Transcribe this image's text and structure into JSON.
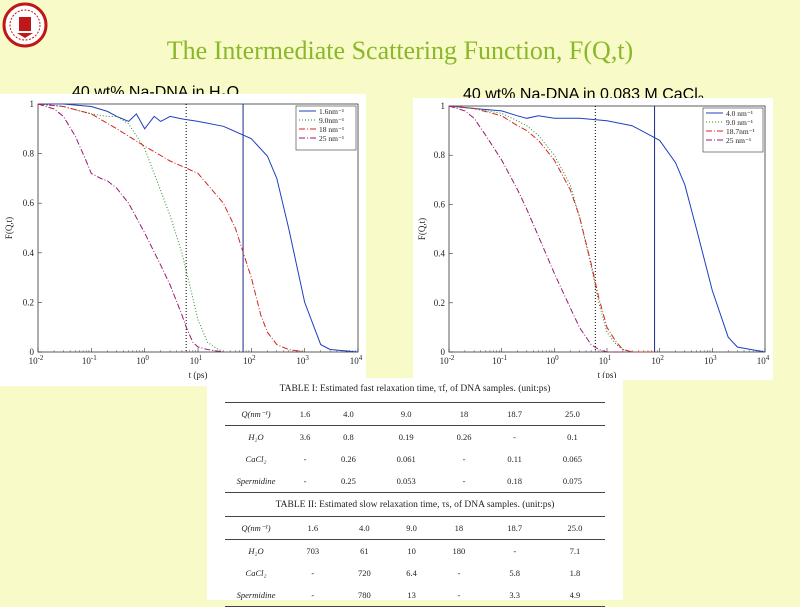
{
  "slide_title": "The Intermediate Scattering Function, F(Q,t)",
  "logo_icon": "university-seal-icon",
  "colors": {
    "title": "#8ab82a",
    "background": "#f8fac8"
  },
  "chart_data": [
    {
      "type": "line",
      "title": "40 wt% Na-DNA in H",
      "title_sub": "2",
      "title_tail": "O",
      "xlabel": "t (ps)",
      "ylabel": "F(Q,t)",
      "xscale": "log",
      "xlim": [
        0.01,
        10000
      ],
      "ylim": [
        0,
        1
      ],
      "x_ticks": [
        "-2",
        "-1",
        "0",
        "1",
        "2",
        "3",
        "4"
      ],
      "y_ticks": [
        "0",
        "0.2",
        "0.4",
        "0.6",
        "0.8",
        "1"
      ],
      "legend_position": "top-right",
      "vlines": [
        {
          "x": 6,
          "style": "dotted"
        },
        {
          "x": 70,
          "style": "solid"
        }
      ],
      "series": [
        {
          "name": "1.6nm⁻¹",
          "color": "#1f3fbf",
          "dash": "solid",
          "x": [
            0.01,
            0.03,
            0.1,
            0.2,
            0.3,
            0.5,
            0.7,
            1,
            1.5,
            2,
            3,
            5,
            10,
            30,
            100,
            200,
            300,
            500,
            1000,
            2000,
            3000,
            10000
          ],
          "y": [
            1,
            1,
            0.99,
            0.97,
            0.95,
            0.93,
            0.96,
            0.9,
            0.95,
            0.93,
            0.95,
            0.94,
            0.93,
            0.91,
            0.86,
            0.79,
            0.7,
            0.5,
            0.2,
            0.03,
            0.01,
            0
          ]
        },
        {
          "name": "9.0nm⁻¹",
          "color": "#2a8a2a",
          "dash": "1,2",
          "x": [
            0.01,
            0.03,
            0.1,
            0.2,
            0.3,
            0.5,
            1,
            2,
            3,
            5,
            7,
            10,
            15,
            20,
            30,
            100
          ],
          "y": [
            1,
            0.99,
            0.96,
            0.95,
            0.95,
            0.92,
            0.82,
            0.65,
            0.55,
            0.4,
            0.27,
            0.13,
            0.04,
            0.02,
            0,
            0
          ]
        },
        {
          "name": "18 nm⁻¹",
          "color": "#d42424",
          "dash": "6,2,1,2",
          "x": [
            0.01,
            0.03,
            0.1,
            0.3,
            1,
            3,
            10,
            30,
            50,
            100,
            150,
            200,
            300,
            500,
            1000
          ],
          "y": [
            1,
            0.99,
            0.96,
            0.9,
            0.83,
            0.77,
            0.72,
            0.6,
            0.5,
            0.3,
            0.15,
            0.08,
            0.03,
            0.01,
            0
          ]
        },
        {
          "name": "25 nm⁻¹",
          "color": "#9a1a70",
          "dash": "6,2,1,2",
          "x": [
            0.01,
            0.02,
            0.03,
            0.05,
            0.08,
            0.1,
            0.15,
            0.2,
            0.3,
            0.5,
            1,
            2,
            3,
            5,
            6,
            8,
            10,
            15,
            30
          ],
          "y": [
            1,
            0.98,
            0.95,
            0.87,
            0.77,
            0.72,
            0.7,
            0.69,
            0.66,
            0.6,
            0.48,
            0.35,
            0.27,
            0.15,
            0.1,
            0.04,
            0.02,
            0.01,
            0
          ]
        }
      ]
    },
    {
      "type": "line",
      "title": "40 wt% Na-DNA in 0.083 M CaCl",
      "title_sub": "2",
      "title_tail": "",
      "xlabel": "t (ps)",
      "ylabel": "F(Q,t)",
      "xscale": "log",
      "xlim": [
        0.01,
        10000
      ],
      "ylim": [
        0,
        1
      ],
      "x_ticks": [
        "-2",
        "-1",
        "0",
        "1",
        "2",
        "3",
        "4"
      ],
      "y_ticks": [
        "0",
        "0.2",
        "0.4",
        "0.6",
        "0.8",
        "1"
      ],
      "legend_position": "top-right",
      "vlines": [
        {
          "x": 6,
          "style": "dotted"
        },
        {
          "x": 80,
          "style": "solid"
        }
      ],
      "series": [
        {
          "name": "4.0 nm⁻¹",
          "color": "#1f3fbf",
          "dash": "solid",
          "x": [
            0.01,
            0.03,
            0.1,
            0.2,
            0.3,
            0.5,
            1,
            3,
            10,
            30,
            100,
            200,
            300,
            500,
            1000,
            2000,
            3000,
            10000
          ],
          "y": [
            1,
            0.99,
            0.98,
            0.96,
            0.95,
            0.96,
            0.95,
            0.95,
            0.94,
            0.92,
            0.86,
            0.77,
            0.68,
            0.5,
            0.25,
            0.06,
            0.02,
            0
          ]
        },
        {
          "name": "9.0 nm⁻¹",
          "color": "#2a8a2a",
          "dash": "1,2",
          "x": [
            0.01,
            0.03,
            0.1,
            0.2,
            0.3,
            0.5,
            1,
            2,
            3,
            5,
            7,
            10,
            15,
            20,
            30,
            100
          ],
          "y": [
            1,
            0.99,
            0.97,
            0.94,
            0.92,
            0.88,
            0.8,
            0.68,
            0.55,
            0.35,
            0.2,
            0.08,
            0.03,
            0.01,
            0,
            0
          ]
        },
        {
          "name": "18.7nm⁻¹",
          "color": "#d42424",
          "dash": "6,2,1,2",
          "x": [
            0.01,
            0.03,
            0.1,
            0.2,
            0.3,
            0.5,
            1,
            2,
            3,
            5,
            7,
            10,
            15,
            20,
            30,
            100
          ],
          "y": [
            1,
            0.99,
            0.96,
            0.92,
            0.9,
            0.86,
            0.78,
            0.66,
            0.55,
            0.36,
            0.22,
            0.1,
            0.04,
            0.01,
            0,
            0
          ]
        },
        {
          "name": "25  nm⁻¹",
          "color": "#9a1a70",
          "dash": "6,2,1,2",
          "x": [
            0.01,
            0.02,
            0.03,
            0.05,
            0.1,
            0.2,
            0.3,
            0.5,
            1,
            2,
            3,
            5,
            7,
            10,
            20
          ],
          "y": [
            1,
            0.98,
            0.95,
            0.88,
            0.78,
            0.66,
            0.58,
            0.47,
            0.32,
            0.18,
            0.1,
            0.03,
            0.01,
            0,
            0
          ]
        }
      ]
    }
  ],
  "table1": {
    "caption": "TABLE I: Estimated fast relaxation time, τf, of DNA samples. (unit:ps)",
    "header": [
      "Q(nm⁻¹)",
      "1.6",
      "4.0",
      "9.0",
      "18",
      "18.7",
      "25.0"
    ],
    "rows": [
      [
        "H₂O",
        "3.6",
        "0.8",
        "0.19",
        "0.26",
        "-",
        "0.1"
      ],
      [
        "CaCl₂",
        "-",
        "0.26",
        "0.061",
        "-",
        "0.11",
        "0.065"
      ],
      [
        "Spermidine",
        "-",
        "0.25",
        "0.053",
        "-",
        "0.18",
        "0.075"
      ]
    ]
  },
  "table2": {
    "caption": "TABLE II: Estimated slow relaxation time, τs, of DNA samples. (unit:ps)",
    "header": [
      "Q(nm⁻¹)",
      "1.6",
      "4.0",
      "9.0",
      "18",
      "18.7",
      "25.0"
    ],
    "rows": [
      [
        "H₂O",
        "703",
        "61",
        "10",
        "180",
        "-",
        "7.1"
      ],
      [
        "CaCl₂",
        "-",
        "720",
        "6.4",
        "-",
        "5.8",
        "1.8"
      ],
      [
        "Spermidine",
        "-",
        "780",
        "13",
        "-",
        "3.3",
        "4.9"
      ]
    ]
  }
}
